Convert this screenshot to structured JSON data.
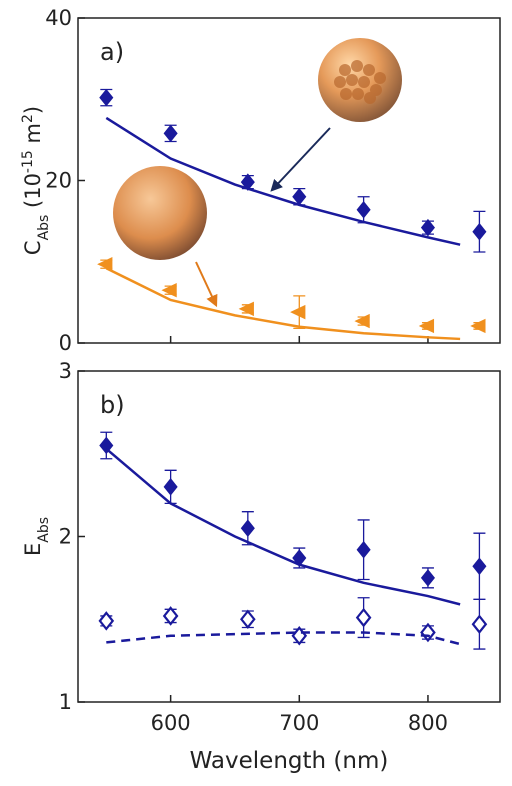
{
  "chart_data": [
    {
      "type": "scatter",
      "panel_label": "a)",
      "ylabel": [
        "C",
        "Abs",
        " (10",
        "-15",
        " m",
        "2",
        ")"
      ],
      "xlim": [
        528,
        856
      ],
      "xticks": [
        600,
        700,
        800
      ],
      "show_xtick_labels": false,
      "ylim": [
        0,
        40
      ],
      "yticks": [
        0,
        20,
        40
      ],
      "series": [
        {
          "kind": "markers",
          "marker": "diamond",
          "color": "#1a1a9c",
          "x": [
            550,
            600,
            660,
            700,
            750,
            800,
            840
          ],
          "values": [
            30.2,
            25.8,
            19.8,
            18.0,
            16.4,
            14.2,
            13.7
          ],
          "errors": [
            1.0,
            1.0,
            0.8,
            1.0,
            1.6,
            0.8,
            2.5
          ]
        },
        {
          "kind": "markers",
          "marker": "triangle-left",
          "color": "#f0901e",
          "x": [
            550,
            600,
            660,
            700,
            750,
            800,
            840
          ],
          "values": [
            9.7,
            6.5,
            4.2,
            3.8,
            2.7,
            2.1,
            2.1
          ],
          "errors": [
            0.5,
            0.5,
            0.5,
            2.0,
            0.5,
            0.4,
            0.4
          ]
        },
        {
          "kind": "line",
          "dash": false,
          "color": "#1a1a9c",
          "x": [
            550,
            600,
            650,
            700,
            750,
            800,
            825
          ],
          "values": [
            27.7,
            22.7,
            19.5,
            17.0,
            14.9,
            13.0,
            12.1
          ]
        },
        {
          "kind": "line",
          "dash": false,
          "color": "#f0901e",
          "x": [
            550,
            600,
            650,
            700,
            750,
            800,
            825
          ],
          "values": [
            9.2,
            5.3,
            3.4,
            2.0,
            1.2,
            0.7,
            0.5
          ]
        }
      ]
    },
    {
      "type": "scatter",
      "panel_label": "b)",
      "ylabel": [
        "E",
        "Abs"
      ],
      "xlabel": "Wavelength (nm)",
      "xlim": [
        528,
        856
      ],
      "xticks": [
        600,
        700,
        800
      ],
      "show_xtick_labels": true,
      "ylim": [
        1,
        3
      ],
      "yticks": [
        1,
        2,
        3
      ],
      "series": [
        {
          "kind": "markers",
          "marker": "diamond",
          "color": "#1a1a9c",
          "x": [
            550,
            600,
            660,
            700,
            750,
            800,
            840
          ],
          "values": [
            2.55,
            2.3,
            2.05,
            1.87,
            1.92,
            1.75,
            1.82
          ],
          "errors": [
            0.08,
            0.1,
            0.1,
            0.06,
            0.18,
            0.06,
            0.2
          ]
        },
        {
          "kind": "markers",
          "marker": "diamond-open",
          "color": "#1a1a9c",
          "x": [
            550,
            600,
            660,
            700,
            750,
            800,
            840
          ],
          "values": [
            1.49,
            1.52,
            1.5,
            1.4,
            1.51,
            1.42,
            1.47
          ],
          "errors": [
            0.03,
            0.04,
            0.05,
            0.04,
            0.12,
            0.04,
            0.15
          ]
        },
        {
          "kind": "line",
          "dash": false,
          "color": "#1a1a9c",
          "x": [
            550,
            600,
            650,
            700,
            750,
            800,
            825
          ],
          "values": [
            2.53,
            2.2,
            2.0,
            1.83,
            1.72,
            1.64,
            1.59
          ]
        },
        {
          "kind": "line",
          "dash": true,
          "color": "#1a1a9c",
          "x": [
            550,
            600,
            650,
            700,
            750,
            800,
            825
          ],
          "values": [
            1.36,
            1.4,
            1.41,
            1.42,
            1.42,
            1.4,
            1.35
          ]
        }
      ]
    }
  ]
}
